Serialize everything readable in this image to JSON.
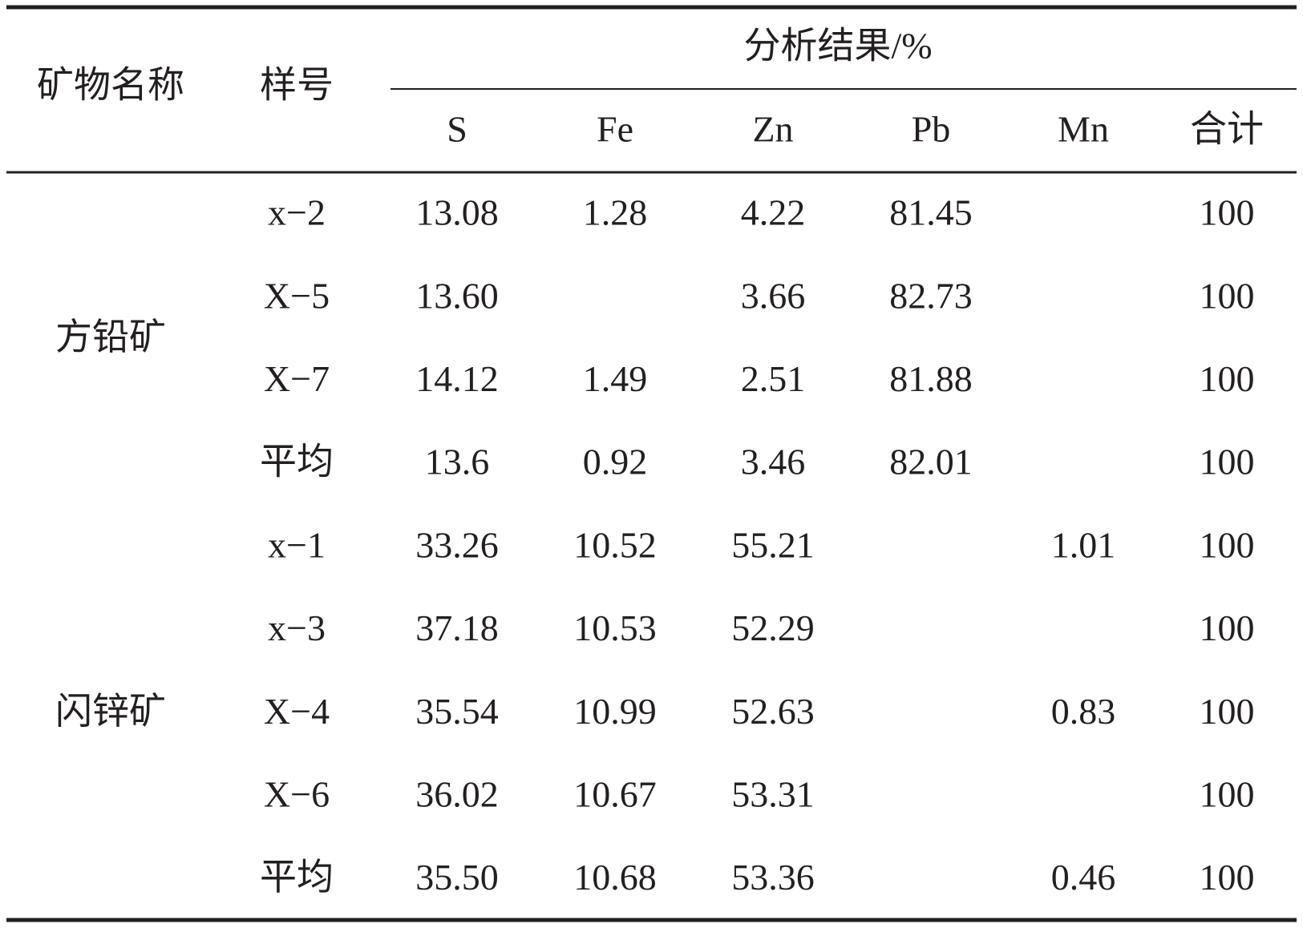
{
  "table": {
    "header": {
      "mineral": "矿物名称",
      "sample": "样号",
      "group": "分析结果/%",
      "columns": [
        "S",
        "Fe",
        "Zn",
        "Pb",
        "Mn",
        "合计"
      ]
    },
    "groups": [
      {
        "name": "方铅矿",
        "rows": [
          {
            "sample": "x−2",
            "cells": [
              "13.08",
              "1.28",
              "4.22",
              "81.45",
              null,
              "100"
            ]
          },
          {
            "sample": "X−5",
            "cells": [
              "13.60",
              null,
              "3.66",
              "82.73",
              null,
              "100"
            ]
          },
          {
            "sample": "X−7",
            "cells": [
              "14.12",
              "1.49",
              "2.51",
              "81.88",
              null,
              "100"
            ]
          },
          {
            "sample": "平均",
            "cells": [
              "13.6",
              "0.92",
              "3.46",
              "82.01",
              null,
              "100"
            ]
          }
        ]
      },
      {
        "name": "闪锌矿",
        "rows": [
          {
            "sample": "x−1",
            "cells": [
              "33.26",
              "10.52",
              "55.21",
              null,
              "1.01",
              "100"
            ]
          },
          {
            "sample": "x−3",
            "cells": [
              "37.18",
              "10.53",
              "52.29",
              null,
              null,
              "100"
            ]
          },
          {
            "sample": "X−4",
            "cells": [
              "35.54",
              "10.99",
              "52.63",
              null,
              "0.83",
              "100"
            ]
          },
          {
            "sample": "X−6",
            "cells": [
              "36.02",
              "10.67",
              "53.31",
              null,
              null,
              "100"
            ]
          },
          {
            "sample": "平均",
            "cells": [
              "35.50",
              "10.68",
              "53.36",
              null,
              "0.46",
              "100"
            ]
          }
        ]
      }
    ]
  }
}
